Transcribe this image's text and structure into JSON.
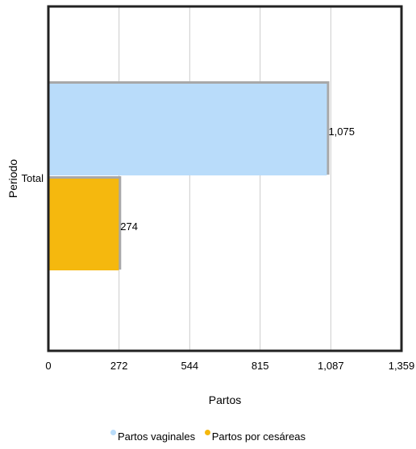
{
  "chart_data": {
    "type": "bar",
    "orientation": "horizontal",
    "categories": [
      "Total"
    ],
    "series": [
      {
        "name": "Partos vaginales",
        "values": [
          1075
        ],
        "color": "#b9dcfa"
      },
      {
        "name": "Partos por cesáreas",
        "values": [
          274
        ],
        "color": "#f5b80e"
      }
    ],
    "data_labels": [
      "1,075",
      "274"
    ],
    "xlabel": "Partos",
    "ylabel": "Periodo",
    "xlim": [
      0,
      1359
    ],
    "x_ticks": [
      0,
      272,
      544,
      815,
      1087,
      1359
    ],
    "x_tick_labels": [
      "0",
      "272",
      "544",
      "815",
      "1,087",
      "1,359"
    ],
    "grid": true,
    "legend_position": "bottom"
  }
}
